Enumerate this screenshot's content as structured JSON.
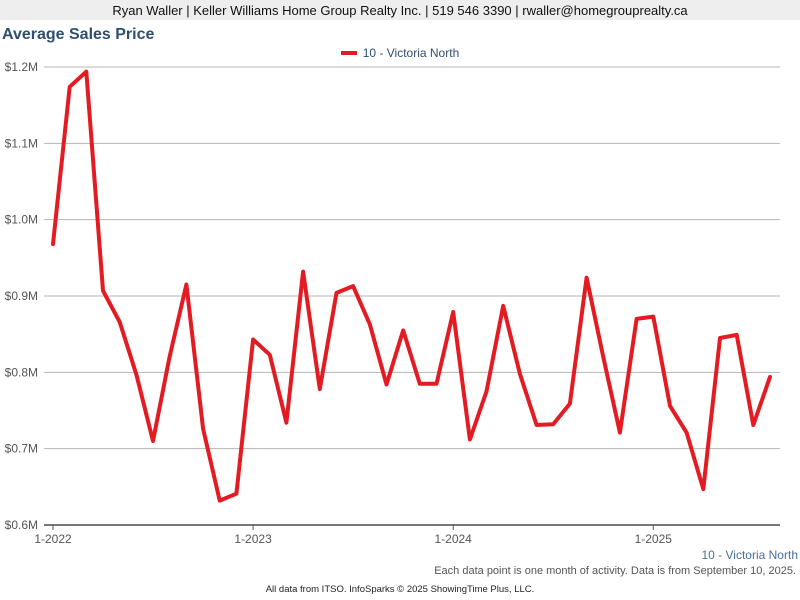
{
  "header": {
    "contact": "Ryan Waller | Keller Williams Home Group Realty Inc. | 519 546 3390 | rwaller@homegrouprealty.ca"
  },
  "chart_data": {
    "type": "line",
    "title": "Average Sales Price",
    "ylim": [
      600000,
      1200000
    ],
    "y_ticks": [
      {
        "value": 600000,
        "label": "$0.6M"
      },
      {
        "value": 700000,
        "label": "$0.7M"
      },
      {
        "value": 800000,
        "label": "$0.8M"
      },
      {
        "value": 900000,
        "label": "$0.9M"
      },
      {
        "value": 1000000,
        "label": "$1.0M"
      },
      {
        "value": 1100000,
        "label": "$1.1M"
      },
      {
        "value": 1200000,
        "label": "$1.2M"
      }
    ],
    "x_ticks": [
      {
        "index": 0,
        "label": "1-2022"
      },
      {
        "index": 12,
        "label": "1-2023"
      },
      {
        "index": 24,
        "label": "1-2024"
      },
      {
        "index": 36,
        "label": "1-2025"
      }
    ],
    "grid": true,
    "series": [
      {
        "name": "10 - Victoria North",
        "color": "#e31c23",
        "start": "2022-01",
        "values": [
          968000,
          1174000,
          1194000,
          907000,
          866000,
          797000,
          710000,
          821000,
          915000,
          726000,
          632000,
          641000,
          843000,
          823000,
          734000,
          932000,
          778000,
          904000,
          913000,
          863000,
          784000,
          855000,
          785000,
          785000,
          879000,
          712000,
          775000,
          887000,
          798000,
          731000,
          732000,
          759000,
          924000,
          820000,
          721000,
          870000,
          873000,
          756000,
          721000,
          647000,
          845000,
          849000,
          731000,
          794000
        ]
      }
    ]
  },
  "footer": {
    "note": "Each data point is one month of activity. Data is from September 10, 2025.",
    "credit": "All data from ITSO. InfoSparks © 2025 ShowingTime Plus, LLC."
  }
}
